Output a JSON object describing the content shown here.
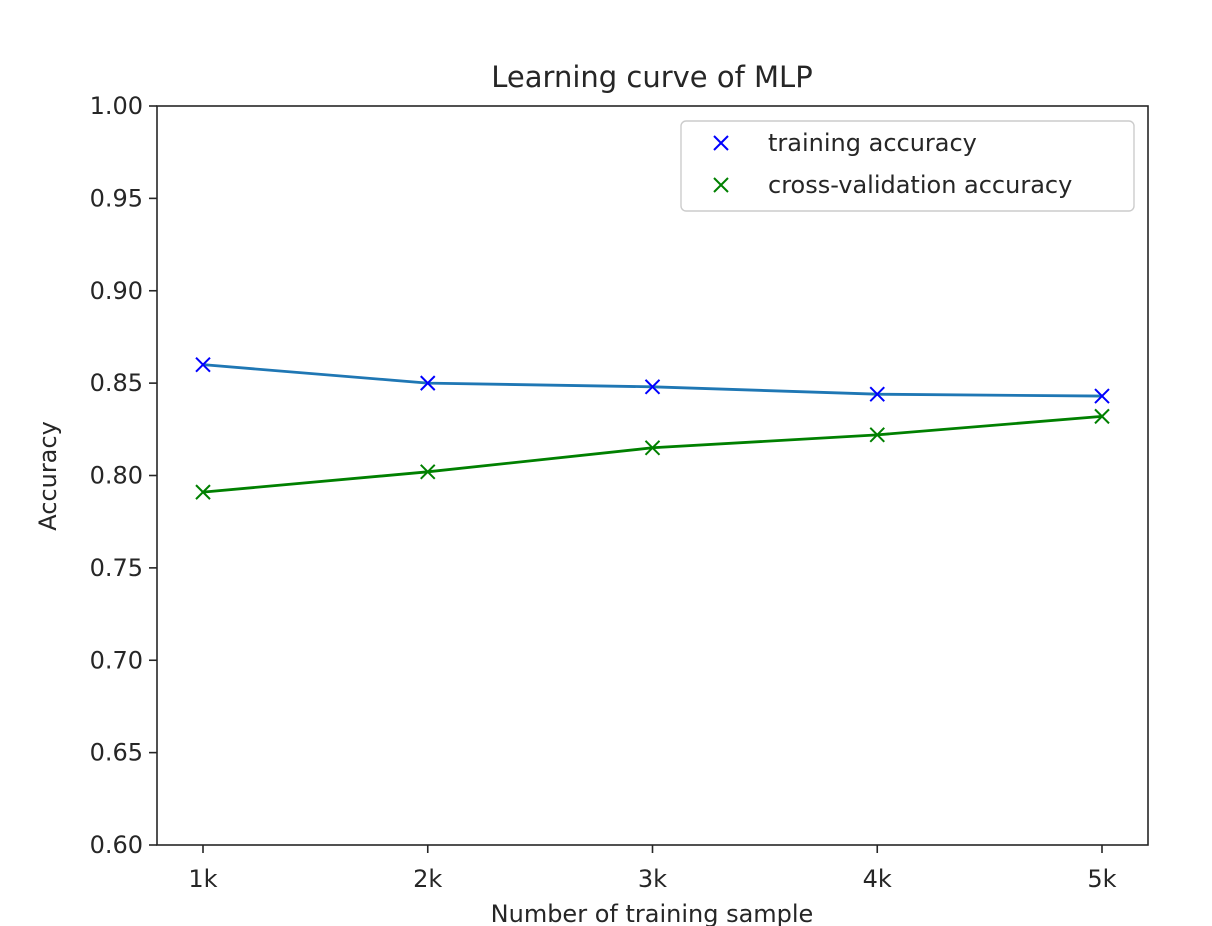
{
  "chart_data": {
    "type": "line",
    "title": "Learning curve of MLP",
    "xlabel": "Number of training sample",
    "ylabel": "Accuracy",
    "categories": [
      "1k",
      "2k",
      "3k",
      "4k",
      "5k"
    ],
    "ylim": [
      0.6,
      1.0
    ],
    "yticks": [
      "0.60",
      "0.65",
      "0.70",
      "0.75",
      "0.80",
      "0.85",
      "0.90",
      "0.95",
      "1.00"
    ],
    "grid": false,
    "legend_position": "top-right",
    "series": [
      {
        "name": "training accuracy",
        "values": [
          0.86,
          0.85,
          0.848,
          0.844,
          0.843
        ],
        "line_color": "#1f77b4",
        "marker_color": "#0000ff",
        "marker": "x"
      },
      {
        "name": "cross-validation accuracy",
        "values": [
          0.791,
          0.802,
          0.815,
          0.822,
          0.832
        ],
        "line_color": "#008000",
        "marker_color": "#008000",
        "marker": "x"
      }
    ]
  }
}
